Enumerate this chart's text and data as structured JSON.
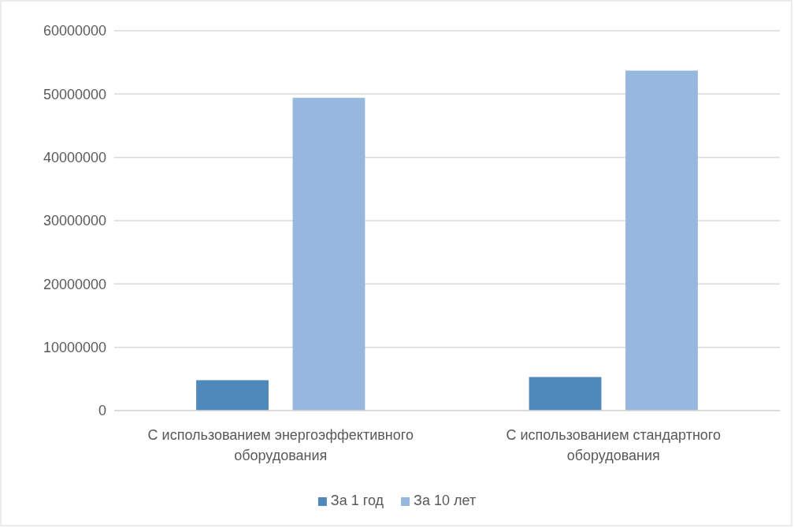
{
  "chart_data": {
    "type": "bar",
    "categories": [
      "С использованием энергоэффективного оборудования",
      "С использованием стандартного оборудования"
    ],
    "series": [
      {
        "name": "За 1 год",
        "color": "#4f88bb",
        "values": [
          4800000,
          5300000
        ]
      },
      {
        "name": "За 10 лет",
        "color": "#97b8de",
        "values": [
          49400000,
          53700000
        ]
      }
    ],
    "ylim": [
      0,
      60000000
    ],
    "yticks": [
      0,
      10000000,
      20000000,
      30000000,
      40000000,
      50000000,
      60000000
    ],
    "grid": "y",
    "legend": "bottom"
  }
}
